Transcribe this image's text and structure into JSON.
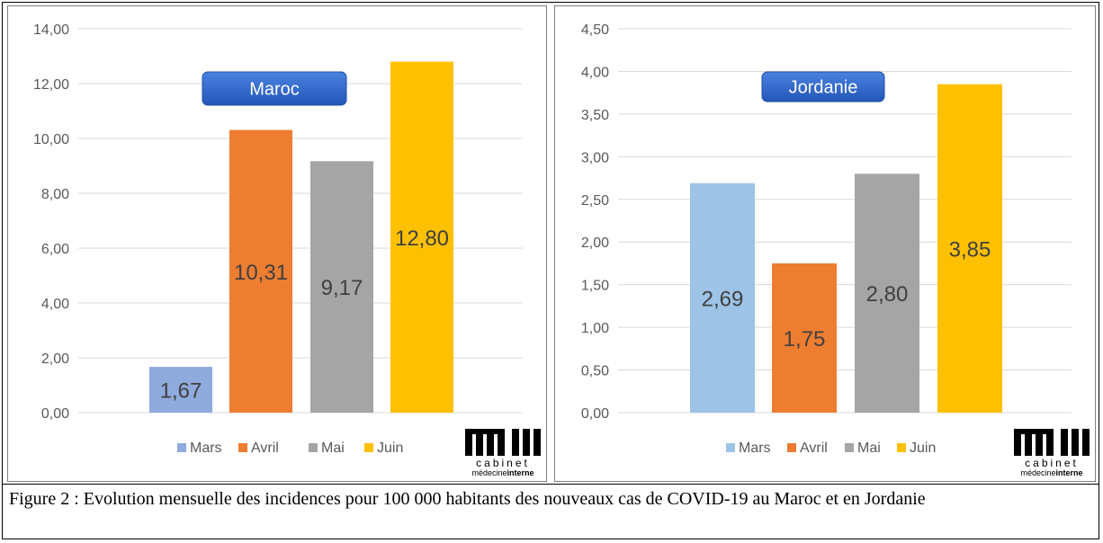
{
  "chart_data": [
    {
      "type": "bar",
      "title": "Maroc",
      "categories": [
        "Mars",
        "Avril",
        "Mai",
        "Juin"
      ],
      "values": [
        1.67,
        10.31,
        9.17,
        12.8
      ],
      "value_labels": [
        "1,67",
        "10,31",
        "9,17",
        "12,80"
      ],
      "colors": [
        "#8faadc",
        "#ed7d31",
        "#a5a5a5",
        "#ffc000"
      ],
      "ylim": [
        0,
        14
      ],
      "yticks": [
        "0,00",
        "2,00",
        "4,00",
        "6,00",
        "8,00",
        "10,00",
        "12,00",
        "14,00"
      ],
      "xlabel": "",
      "ylabel": "",
      "grid": true,
      "legend": "bottom",
      "title_color": "#2e63c4"
    },
    {
      "type": "bar",
      "title": "Jordanie",
      "categories": [
        "Mars",
        "Avril",
        "Mai",
        "Juin"
      ],
      "values": [
        2.69,
        1.75,
        2.8,
        3.85
      ],
      "value_labels": [
        "2,69",
        "1,75",
        "2,80",
        "3,85"
      ],
      "colors": [
        "#9dc3e6",
        "#ed7d31",
        "#a5a5a5",
        "#ffc000"
      ],
      "ylim": [
        0,
        4.5
      ],
      "yticks": [
        "0,00",
        "0,50",
        "1,00",
        "1,50",
        "2,00",
        "2,50",
        "3,00",
        "3,50",
        "4,00",
        "4,50"
      ],
      "xlabel": "",
      "ylabel": "",
      "grid": true,
      "legend": "bottom",
      "title_color": "#2e63c4"
    }
  ],
  "logo": {
    "top": "cabinet",
    "bottom_light": "médecine",
    "bottom_bold": "interne"
  },
  "caption": "Figure 2 : Evolution mensuelle des incidences pour 100 000 habitants des nouveaux cas de COVID-19 au Maroc et en Jordanie"
}
